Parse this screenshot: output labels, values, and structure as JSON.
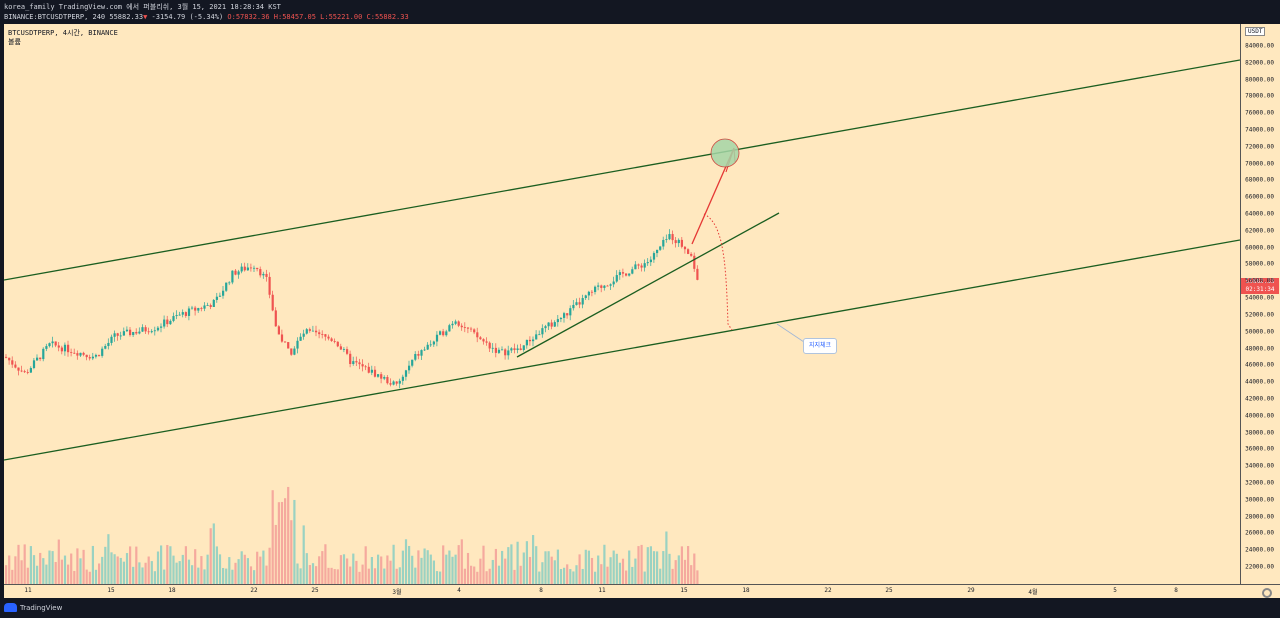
{
  "header": {
    "line1": "korea_family TradingView.com 에서 퍼블리쉬, 3월 15, 2021 18:28:34 KST",
    "symbol": "BINANCE:BTCUSDTPERP, 240",
    "price": "55882.33",
    "change": "-3154.79 (-5.34%)",
    "open": "O:57832.36",
    "high": "H:58457.05",
    "low": "L:55221.00",
    "close": "C:55882.33"
  },
  "legend": {
    "title": "BTCUSDTPERP, 4시간, BINANCE",
    "volume_label": "볼륨"
  },
  "yaxis": {
    "currency": "USDT",
    "ticks": [
      "84000.00",
      "82000.00",
      "80000.00",
      "78000.00",
      "76000.00",
      "74000.00",
      "72000.00",
      "70000.00",
      "68000.00",
      "66000.00",
      "64000.00",
      "62000.00",
      "60000.00",
      "58000.00",
      "56000.00",
      "54000.00",
      "52000.00",
      "50000.00",
      "48000.00",
      "46000.00",
      "44000.00",
      "42000.00",
      "40000.00",
      "38000.00",
      "36000.00",
      "34000.00",
      "32000.00",
      "30000.00",
      "28000.00",
      "26000.00",
      "24000.00",
      "22000.00"
    ],
    "current_price": "55882.33",
    "countdown": "02:31:34"
  },
  "xaxis": {
    "ticks": [
      "11",
      "15",
      "18",
      "22",
      "25",
      "3월",
      "4",
      "8",
      "11",
      "15",
      "18",
      "22",
      "25",
      "29",
      "4월",
      "5",
      "8"
    ]
  },
  "annotation": {
    "callout": "지지체크"
  },
  "footer": {
    "brand": "TradingView"
  },
  "colors": {
    "background": "#ffe8bf",
    "up": "#26a69a",
    "down": "#ef5350",
    "trendline": "#1b5e20",
    "arrow": "#e53935",
    "circle": "#a5d6a7"
  }
}
